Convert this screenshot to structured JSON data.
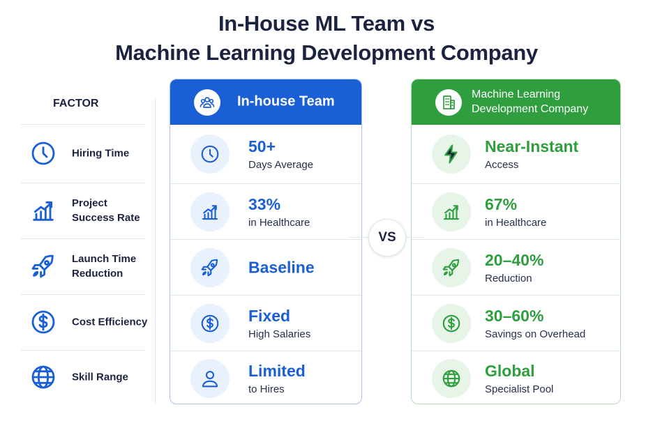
{
  "header": {
    "title_line1": "In-House ML Team vs",
    "title_line2": "Machine Learning Development Company"
  },
  "factors": {
    "heading": "FACTOR",
    "items": [
      {
        "label": "Hiring Time"
      },
      {
        "label": "Project\nSuccess Rate"
      },
      {
        "label": "Launch Time\nReduction"
      },
      {
        "label": "Cost Efficiency"
      },
      {
        "label": "Skill Range"
      }
    ]
  },
  "vs": "VS",
  "columns": [
    {
      "title": "In-house Team",
      "rows": [
        {
          "main": "50+",
          "sub": "Days Average"
        },
        {
          "main": "33%",
          "sub": "in Healthcare"
        },
        {
          "main": "Baseline"
        },
        {
          "main": "Fixed",
          "sub": "High Salaries"
        },
        {
          "main": "Limited",
          "sub": "to Hires"
        }
      ]
    },
    {
      "title": "Machine Learning\nDevelopment Company",
      "rows": [
        {
          "main": "Near-Instant",
          "sub": "Access"
        },
        {
          "main": "67%",
          "sub": "in Healthcare"
        },
        {
          "main": "20–40%",
          "sub": "Reduction"
        },
        {
          "main": "30–60%",
          "sub": "Savings on Overhead"
        },
        {
          "main": "Global",
          "sub": "Specialist Pool"
        }
      ]
    }
  ]
}
